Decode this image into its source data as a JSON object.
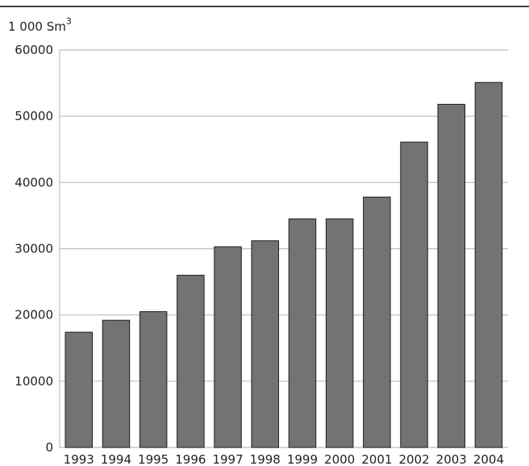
{
  "chart_data": {
    "type": "bar",
    "title": "",
    "xlabel": "",
    "ylabel": "1 000 Sm",
    "ylabel_superscript": "3",
    "categories": [
      "1993",
      "1994",
      "1995",
      "1996",
      "1997",
      "1998",
      "1999",
      "2000",
      "2001",
      "2002",
      "2003",
      "2004"
    ],
    "values": [
      17400,
      19200,
      20500,
      26000,
      30300,
      31200,
      34500,
      34500,
      37800,
      46100,
      51800,
      55100
    ],
    "ylim": [
      0,
      60000
    ],
    "yticks": [
      0,
      10000,
      20000,
      30000,
      40000,
      50000,
      60000
    ],
    "ytick_labels": [
      "0",
      "10000",
      "20000",
      "30000",
      "40000",
      "50000",
      "60000"
    ],
    "grid": true,
    "legend": "none",
    "colors": {
      "bar_fill": "#737373",
      "bar_stroke": "#1e1e1e",
      "grid": "#bdbdbd",
      "top_rule": "#000000",
      "text": "#222222"
    }
  }
}
